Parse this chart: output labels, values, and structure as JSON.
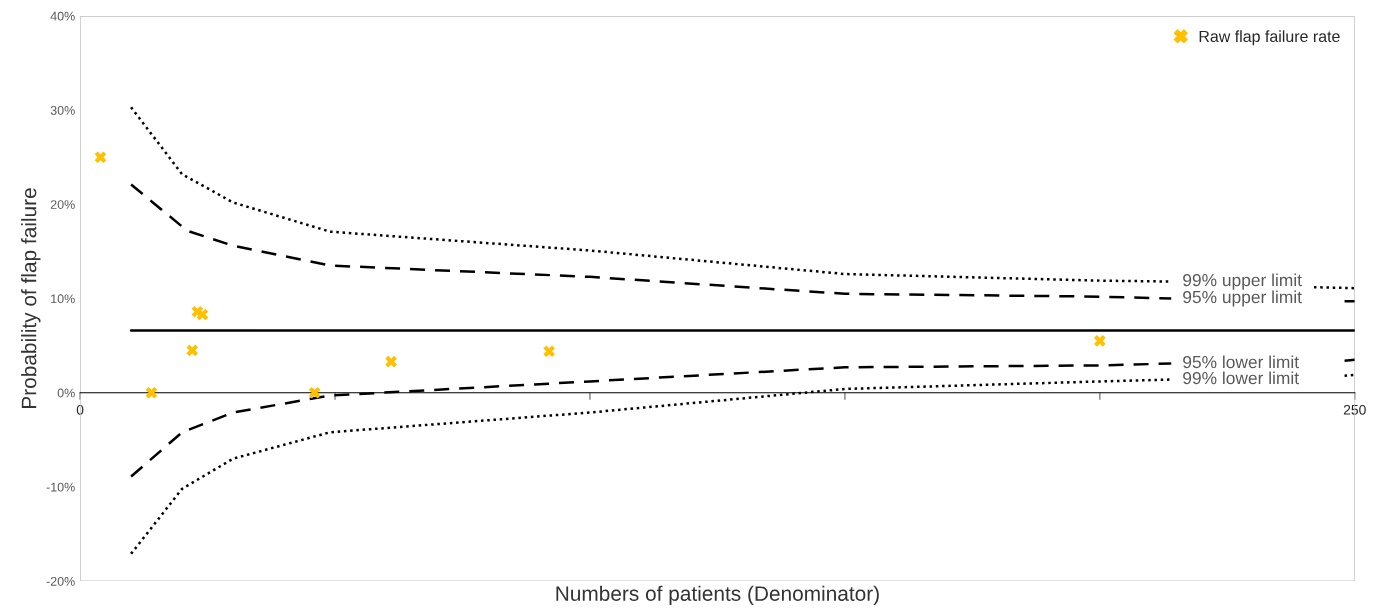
{
  "chart_data": {
    "type": "scatter",
    "xlabel": "Numbers of patients (Denominator)",
    "ylabel": "Probability of flap failure",
    "xlim": [
      0,
      250
    ],
    "xticks": [
      0,
      {
        "value": 50,
        "label": null
      },
      {
        "value": 100,
        "label": null
      },
      {
        "value": 150,
        "label": null
      },
      {
        "value": 200,
        "label": null
      },
      250
    ],
    "ylim": [
      -20,
      40
    ],
    "yticks": [
      {
        "value": -20,
        "label": "-20%"
      },
      {
        "value": -10,
        "label": "-10%"
      },
      {
        "value": 0,
        "label": "0%"
      },
      {
        "value": 10,
        "label": "10%"
      },
      {
        "value": 20,
        "label": "20%"
      },
      {
        "value": 30,
        "label": "30%"
      },
      {
        "value": 40,
        "label": "40%"
      }
    ],
    "grid": false,
    "legend": "top right",
    "series": [
      {
        "name": "Raw flap failure rate",
        "marker": "cross",
        "color": "#ffc000",
        "x": [
          4,
          14,
          22,
          23,
          24,
          46,
          61,
          92,
          200
        ],
        "values": [
          25,
          0,
          4.5,
          8.6,
          8.3,
          0,
          3.3,
          4.4,
          5.5
        ]
      },
      {
        "type": "line",
        "line_style": "solid",
        "color": "#000000",
        "x": [
          10,
          250
        ],
        "values": [
          6.6,
          6.6
        ]
      },
      {
        "name": "99% upper limit",
        "type": "line",
        "line_style": "dotted",
        "color": "#000000",
        "x": [
          10,
          20,
          30,
          49,
          100,
          150,
          200,
          214,
          228,
          242,
          250
        ],
        "values": [
          30.3,
          23.2,
          20.2,
          17.1,
          15.1,
          12.6,
          11.9,
          11.8,
          null,
          11.2,
          11.1
        ]
      },
      {
        "name": "95% upper limit",
        "type": "line",
        "line_style": "dashed",
        "color": "#000000",
        "x": [
          10,
          21,
          30,
          49,
          100,
          150,
          200,
          214,
          230,
          248,
          250
        ],
        "values": [
          22.1,
          17.2,
          15.6,
          13.5,
          12.3,
          10.5,
          10.2,
          10.0,
          null,
          9.7,
          9.7
        ]
      },
      {
        "name": "95% lower limit",
        "type": "line",
        "line_style": "dashed",
        "color": "#000000",
        "x": [
          10,
          20,
          30,
          49,
          100,
          150,
          200,
          214,
          230,
          248,
          250
        ],
        "values": [
          -8.9,
          -4.2,
          -2.1,
          -0.3,
          1.2,
          2.7,
          2.9,
          3.1,
          null,
          3.4,
          3.5
        ]
      },
      {
        "name": "99% lower limit",
        "type": "line",
        "line_style": "dotted",
        "color": "#000000",
        "x": [
          10,
          20,
          30,
          49,
          100,
          150,
          200,
          214,
          230,
          248,
          250
        ],
        "values": [
          -17.1,
          -10.2,
          -7.0,
          -4.2,
          -2.1,
          0.4,
          1.2,
          1.4,
          null,
          1.8,
          1.9
        ]
      }
    ]
  }
}
